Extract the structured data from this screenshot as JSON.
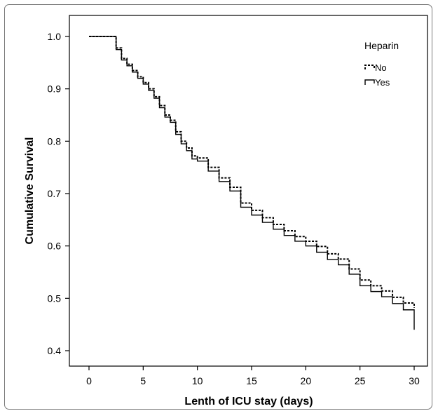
{
  "chart_data": {
    "type": "line",
    "title": "",
    "xlabel": "Lenth of ICU stay (days)",
    "ylabel": "Cumulative Survival",
    "xlim": [
      0,
      30
    ],
    "ylim": [
      0.4,
      1.0
    ],
    "x_ticks": [
      "0",
      "5",
      "10",
      "15",
      "20",
      "25",
      "30"
    ],
    "y_ticks": [
      "0.4",
      "0.5",
      "0.6",
      "0.7",
      "0.8",
      "0.9",
      "1.0"
    ],
    "grid": false,
    "legend": {
      "title": "Heparin",
      "position": "top-right"
    },
    "series": [
      {
        "name": "No",
        "style": "dashed",
        "x": [
          0,
          2,
          2.5,
          3,
          3.5,
          4,
          4.5,
          5,
          5.5,
          6,
          6.5,
          7,
          7.5,
          8,
          8.5,
          9,
          9.5,
          10,
          11,
          12,
          13,
          14,
          15,
          16,
          17,
          18,
          19,
          20,
          21,
          22,
          23,
          24,
          25,
          26,
          27,
          28,
          29,
          30
        ],
        "y": [
          1.0,
          1.0,
          0.978,
          0.958,
          0.947,
          0.935,
          0.923,
          0.912,
          0.9,
          0.885,
          0.868,
          0.85,
          0.84,
          0.818,
          0.8,
          0.787,
          0.772,
          0.768,
          0.75,
          0.73,
          0.712,
          0.682,
          0.668,
          0.654,
          0.641,
          0.629,
          0.618,
          0.609,
          0.599,
          0.585,
          0.575,
          0.556,
          0.535,
          0.524,
          0.514,
          0.502,
          0.491,
          0.482
        ]
      },
      {
        "name": "Yes",
        "style": "solid",
        "x": [
          0,
          2,
          2.5,
          3,
          3.5,
          4,
          4.5,
          5,
          5.5,
          6,
          6.5,
          7,
          7.5,
          8,
          8.5,
          9,
          9.5,
          10,
          11,
          12,
          13,
          14,
          15,
          16,
          17,
          18,
          19,
          20,
          21,
          22,
          23,
          24,
          25,
          26,
          27,
          28,
          29,
          30
        ],
        "y": [
          1.0,
          1.0,
          0.975,
          0.955,
          0.944,
          0.932,
          0.92,
          0.909,
          0.897,
          0.882,
          0.864,
          0.846,
          0.836,
          0.813,
          0.795,
          0.782,
          0.766,
          0.762,
          0.743,
          0.723,
          0.705,
          0.674,
          0.659,
          0.645,
          0.632,
          0.62,
          0.609,
          0.6,
          0.588,
          0.574,
          0.564,
          0.546,
          0.524,
          0.513,
          0.503,
          0.49,
          0.478,
          0.44
        ]
      }
    ]
  }
}
